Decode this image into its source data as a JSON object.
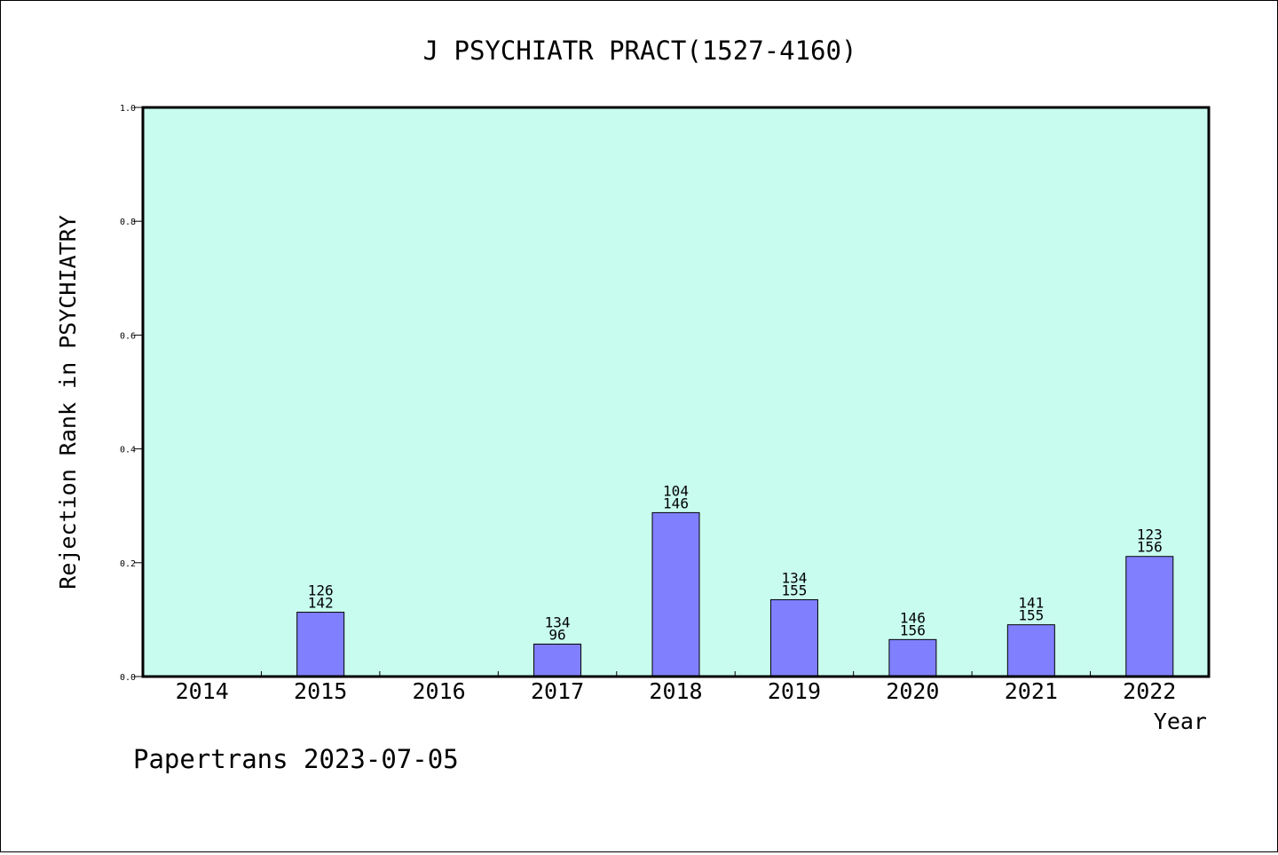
{
  "chart_data": {
    "type": "bar",
    "title": "J PSYCHIATR PRACT(1527-4160)",
    "xlabel": "Year",
    "ylabel": "Rejection Rank in PSYCHIATRY",
    "footer": "Papertrans 2023-07-05",
    "ylim": [
      0,
      1.0
    ],
    "yticks": [
      "0.0",
      "0.2",
      "0.4",
      "0.6",
      "0.8",
      "1.0"
    ],
    "categories": [
      "2014",
      "2015",
      "2016",
      "2017",
      "2018",
      "2019",
      "2020",
      "2021",
      "2022"
    ],
    "values": [
      0,
      0.113,
      0,
      0.057,
      0.288,
      0.135,
      0.065,
      0.091,
      0.211
    ],
    "labels_top": [
      "",
      "126",
      "",
      "134",
      "104",
      "134",
      "146",
      "141",
      "123"
    ],
    "labels_bottom": [
      "",
      "142",
      "",
      "96",
      "146",
      "155",
      "156",
      "155",
      "156"
    ],
    "grid": false,
    "colors": {
      "plot_bg": "#c8fcee",
      "bar_fill": "#8080ff",
      "bar_stroke": "#000000",
      "axis": "#000000"
    }
  }
}
